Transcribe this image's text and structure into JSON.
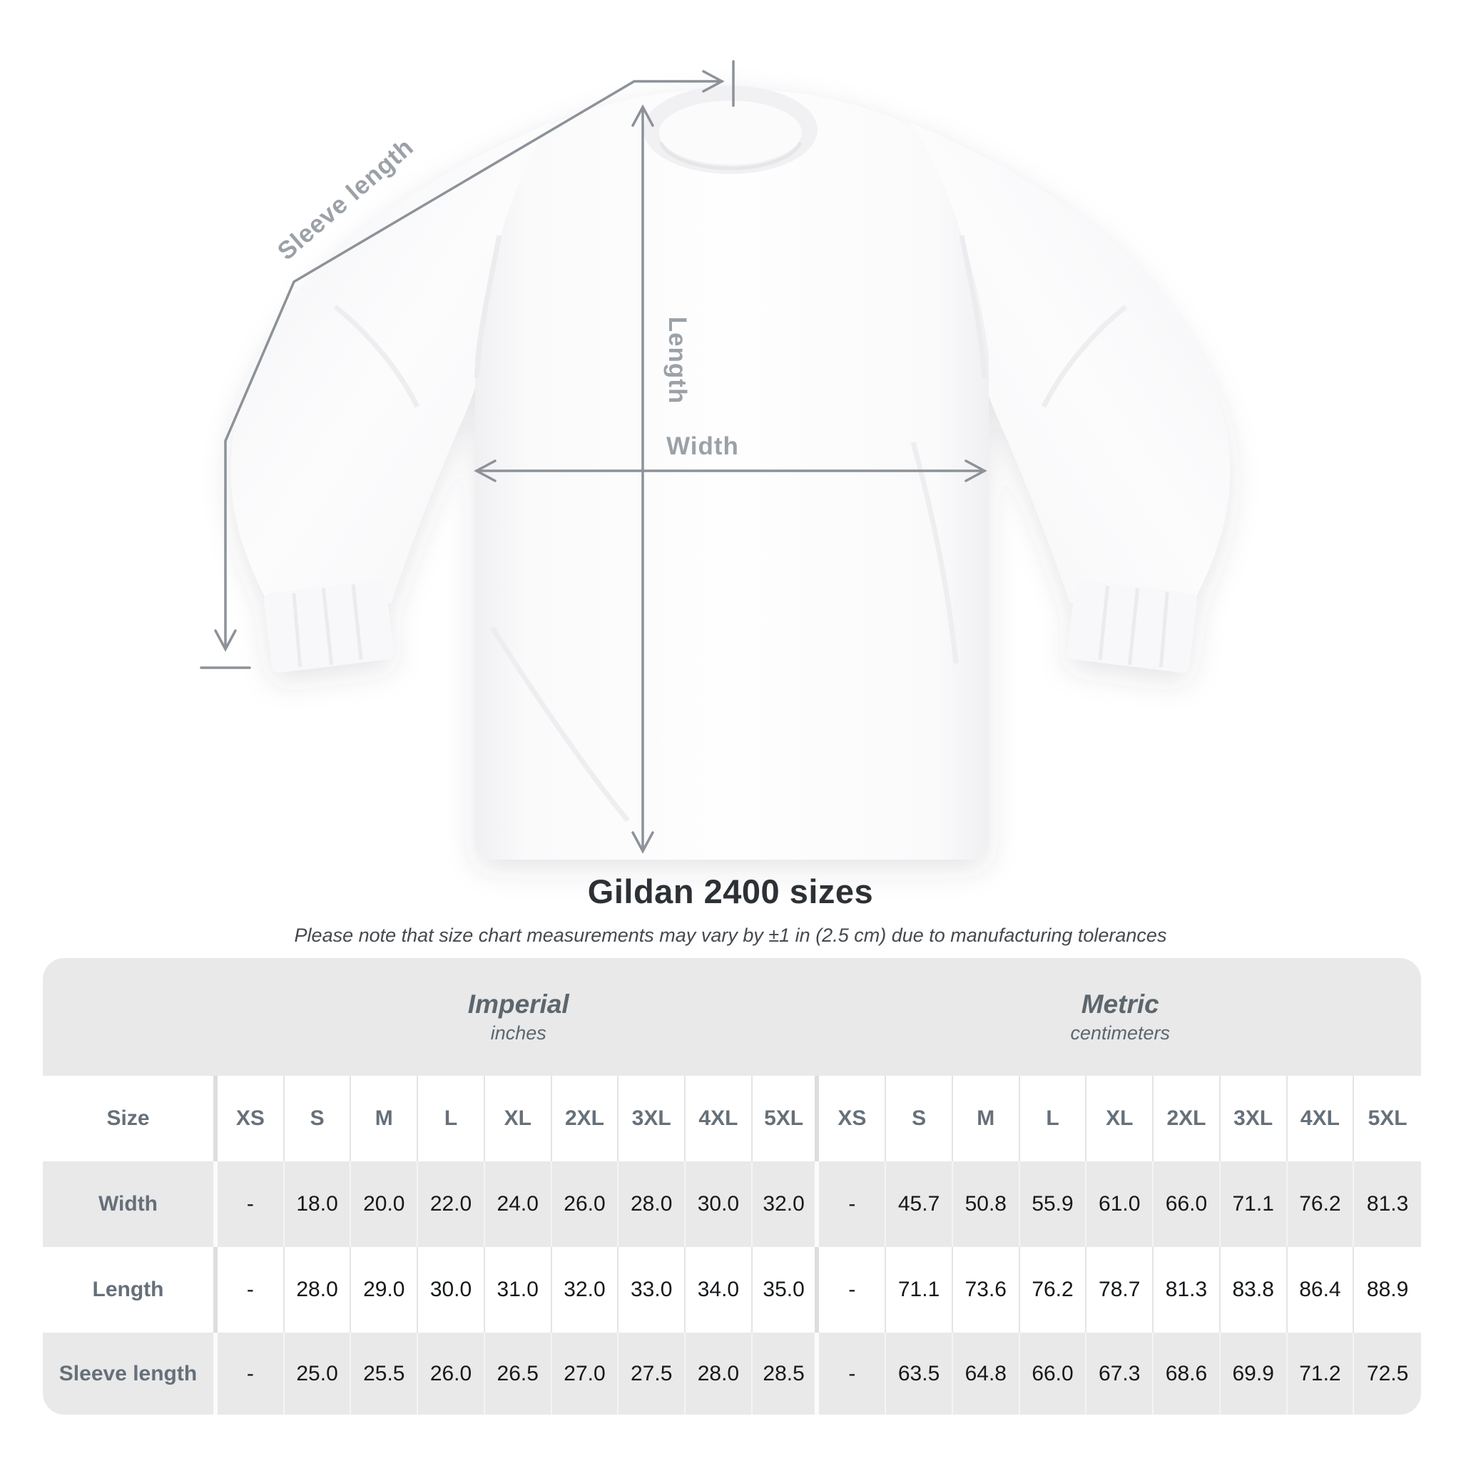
{
  "title": "Gildan 2400 sizes",
  "subtitle": "Please note that size chart measurements may vary by ±1 in (2.5 cm) due to manufacturing tolerances",
  "diagram": {
    "sleeve_label": "Sleeve length",
    "length_label": "Length",
    "width_label": "Width"
  },
  "colors": {
    "panel_bg": "#e9e9ea",
    "measure_line": "#8c9298",
    "diagram_label": "#9ba1a7",
    "header_text": "#66707a",
    "value_text": "#16181a"
  },
  "table": {
    "size_header": "Size",
    "groups": [
      {
        "label": "Imperial",
        "unit": "inches"
      },
      {
        "label": "Metric",
        "unit": "centimeters"
      }
    ],
    "sizes": [
      "XS",
      "S",
      "M",
      "L",
      "XL",
      "2XL",
      "3XL",
      "4XL",
      "5XL"
    ],
    "rows": [
      {
        "label": "Width",
        "values": [
          "-",
          "18.0",
          "20.0",
          "22.0",
          "24.0",
          "26.0",
          "28.0",
          "30.0",
          "32.0",
          "-",
          "45.7",
          "50.8",
          "55.9",
          "61.0",
          "66.0",
          "71.1",
          "76.2",
          "81.3"
        ]
      },
      {
        "label": "Length",
        "values": [
          "-",
          "28.0",
          "29.0",
          "30.0",
          "31.0",
          "32.0",
          "33.0",
          "34.0",
          "35.0",
          "-",
          "71.1",
          "73.6",
          "76.2",
          "78.7",
          "81.3",
          "83.8",
          "86.4",
          "88.9"
        ]
      },
      {
        "label": "Sleeve length",
        "values": [
          "-",
          "25.0",
          "25.5",
          "26.0",
          "26.5",
          "27.0",
          "27.5",
          "28.0",
          "28.5",
          "-",
          "63.5",
          "64.8",
          "66.0",
          "67.3",
          "68.6",
          "69.9",
          "71.2",
          "72.5"
        ]
      }
    ]
  },
  "chart_data": {
    "type": "table",
    "title": "Gildan 2400 sizes",
    "note": "Please note that size chart measurements may vary by ±1 in (2.5 cm) due to manufacturing tolerances",
    "units": {
      "imperial": "inches",
      "metric": "centimeters"
    },
    "sizes": [
      "XS",
      "S",
      "M",
      "L",
      "XL",
      "2XL",
      "3XL",
      "4XL",
      "5XL"
    ],
    "measurements": [
      {
        "name": "Width",
        "imperial_in": [
          null,
          18.0,
          20.0,
          22.0,
          24.0,
          26.0,
          28.0,
          30.0,
          32.0
        ],
        "metric_cm": [
          null,
          45.7,
          50.8,
          55.9,
          61.0,
          66.0,
          71.1,
          76.2,
          81.3
        ]
      },
      {
        "name": "Length",
        "imperial_in": [
          null,
          28.0,
          29.0,
          30.0,
          31.0,
          32.0,
          33.0,
          34.0,
          35.0
        ],
        "metric_cm": [
          null,
          71.1,
          73.6,
          76.2,
          78.7,
          81.3,
          83.8,
          86.4,
          88.9
        ]
      },
      {
        "name": "Sleeve length",
        "imperial_in": [
          null,
          25.0,
          25.5,
          26.0,
          26.5,
          27.0,
          27.5,
          28.0,
          28.5
        ],
        "metric_cm": [
          null,
          63.5,
          64.8,
          66.0,
          67.3,
          68.6,
          69.9,
          71.2,
          72.5
        ]
      }
    ]
  }
}
